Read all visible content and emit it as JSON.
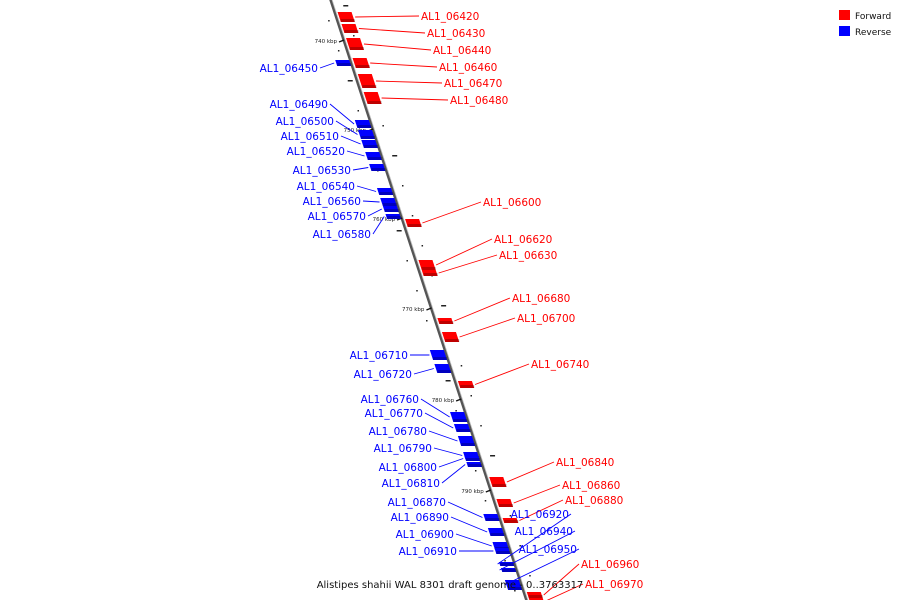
{
  "legend": {
    "forward": {
      "label": "Forward",
      "color": "#ff0000"
    },
    "reverse": {
      "label": "Reverse",
      "color": "#0000ff"
    }
  },
  "caption": "Alistipes shahii WAL 8301 draft genome - 0..3763317",
  "ticks": [
    "740 kbp",
    "750 kbp",
    "760 kbp",
    "770 kbp",
    "780 kbp",
    "790 kbp"
  ],
  "genes": [
    {
      "id": "AL1_06420",
      "strand": "forward"
    },
    {
      "id": "AL1_06430",
      "strand": "forward"
    },
    {
      "id": "AL1_06440",
      "strand": "forward"
    },
    {
      "id": "AL1_06450",
      "strand": "reverse"
    },
    {
      "id": "AL1_06460",
      "strand": "forward"
    },
    {
      "id": "AL1_06470",
      "strand": "forward"
    },
    {
      "id": "AL1_06480",
      "strand": "forward"
    },
    {
      "id": "AL1_06490",
      "strand": "reverse"
    },
    {
      "id": "AL1_06500",
      "strand": "reverse"
    },
    {
      "id": "AL1_06510",
      "strand": "reverse"
    },
    {
      "id": "AL1_06520",
      "strand": "reverse"
    },
    {
      "id": "AL1_06530",
      "strand": "reverse"
    },
    {
      "id": "AL1_06540",
      "strand": "reverse"
    },
    {
      "id": "AL1_06560",
      "strand": "reverse"
    },
    {
      "id": "AL1_06570",
      "strand": "reverse"
    },
    {
      "id": "AL1_06580",
      "strand": "reverse"
    },
    {
      "id": "AL1_06600",
      "strand": "forward"
    },
    {
      "id": "AL1_06620",
      "strand": "forward"
    },
    {
      "id": "AL1_06630",
      "strand": "forward"
    },
    {
      "id": "AL1_06680",
      "strand": "forward"
    },
    {
      "id": "AL1_06700",
      "strand": "forward"
    },
    {
      "id": "AL1_06710",
      "strand": "reverse"
    },
    {
      "id": "AL1_06720",
      "strand": "reverse"
    },
    {
      "id": "AL1_06740",
      "strand": "forward"
    },
    {
      "id": "AL1_06760",
      "strand": "reverse"
    },
    {
      "id": "AL1_06770",
      "strand": "reverse"
    },
    {
      "id": "AL1_06780",
      "strand": "reverse"
    },
    {
      "id": "AL1_06790",
      "strand": "reverse"
    },
    {
      "id": "AL1_06800",
      "strand": "reverse"
    },
    {
      "id": "AL1_06810",
      "strand": "reverse"
    },
    {
      "id": "AL1_06840",
      "strand": "forward"
    },
    {
      "id": "AL1_06860",
      "strand": "forward"
    },
    {
      "id": "AL1_06870",
      "strand": "reverse"
    },
    {
      "id": "AL1_06880",
      "strand": "forward"
    },
    {
      "id": "AL1_06890",
      "strand": "reverse"
    },
    {
      "id": "AL1_06900",
      "strand": "reverse"
    },
    {
      "id": "AL1_06910",
      "strand": "reverse"
    },
    {
      "id": "AL1_06920",
      "strand": "reverse"
    },
    {
      "id": "AL1_06940",
      "strand": "reverse"
    },
    {
      "id": "AL1_06950",
      "strand": "reverse"
    },
    {
      "id": "AL1_06960",
      "strand": "forward"
    },
    {
      "id": "AL1_06970",
      "strand": "forward"
    }
  ]
}
